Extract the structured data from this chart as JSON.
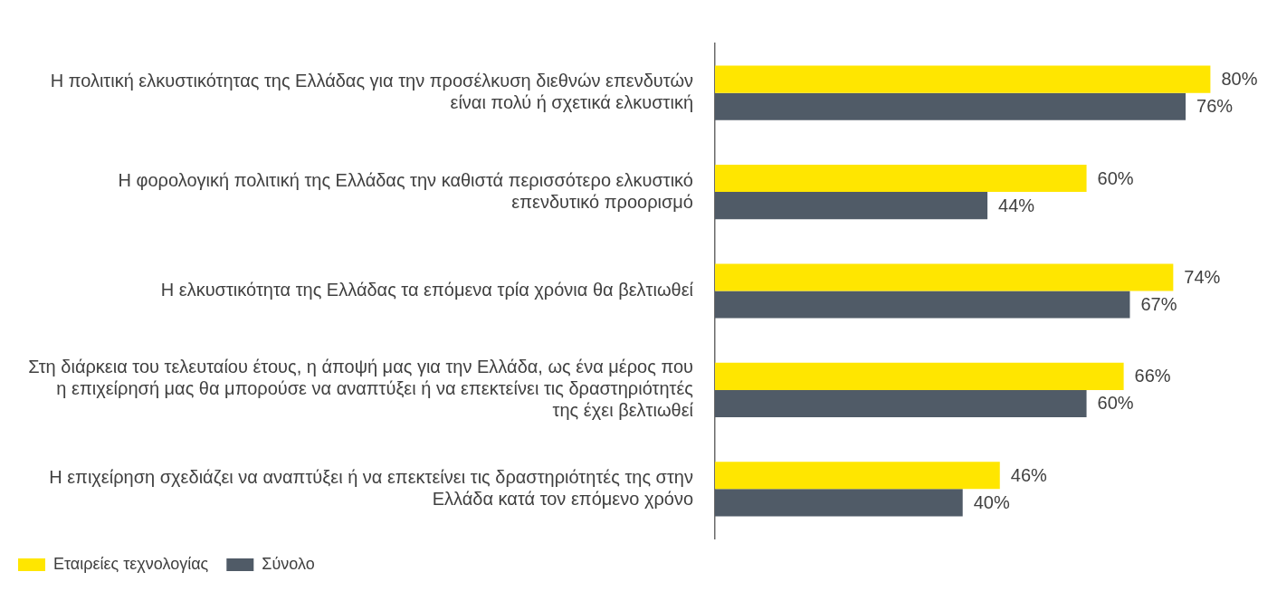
{
  "chart_data": {
    "type": "bar",
    "orientation": "horizontal",
    "legend": "bottom",
    "categories": [
      "Η πολιτική ελκυστικότητας της Ελλάδας για την προσέλκυση διεθνών επενδυτών είναι πολύ ή σχετικά ελκυστική",
      "Η φορολογική πολιτική της Ελλάδας την καθιστά περισσότερο ελκυστικό επενδυτικό προορισμό",
      "Η ελκυστικότητα της Ελλάδας τα επόμενα τρία χρόνια θα βελτιωθεί",
      "Στη διάρκεια του τελευταίου έτους, η άποψή μας για την Ελλάδα, ως ένα μέρος που η επιχείρησή μας θα μπορούσε να αναπτύξει ή να επεκτείνει τις δραστηριότητές της έχει βελτιωθεί",
      "Η επιχείρηση σχεδιάζει να αναπτύξει ή να επεκτείνει τις δραστηριότητές της στην Ελλάδα κατά τον επόμενο χρόνο"
    ],
    "series": [
      {
        "name": "Εταιρείες τεχνολογίας",
        "color": "#ffe600",
        "values": [
          80,
          60,
          74,
          66,
          46
        ],
        "value_labels": [
          "80%",
          "60%",
          "74%",
          "66%",
          "46%"
        ]
      },
      {
        "name": "Σύνολο",
        "color": "#505b67",
        "values": [
          76,
          44,
          67,
          60,
          40
        ],
        "value_labels": [
          "76%",
          "44%",
          "67%",
          "60%",
          "40%"
        ]
      }
    ]
  }
}
